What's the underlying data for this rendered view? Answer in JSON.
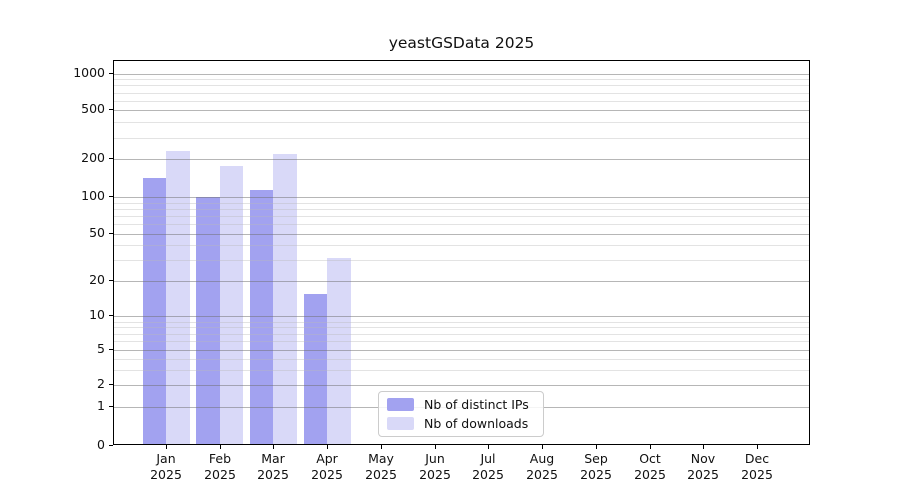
{
  "figure": {
    "title": "yeastGSData 2025"
  },
  "chart_data": {
    "type": "bar",
    "title": "yeastGSData 2025",
    "x_months": [
      "Jan",
      "Feb",
      "Mar",
      "Apr",
      "May",
      "Jun",
      "Jul",
      "Aug",
      "Sep",
      "Oct",
      "Nov",
      "Dec"
    ],
    "x_year": "2025",
    "series": [
      {
        "name": "Nb of distinct IPs",
        "color": "#a2a2f0",
        "values": [
          137,
          97,
          110,
          15,
          0,
          0,
          0,
          0,
          0,
          0,
          0,
          0
        ]
      },
      {
        "name": "Nb of downloads",
        "color": "#d9d9f8",
        "values": [
          225,
          170,
          212,
          30,
          0,
          0,
          0,
          0,
          0,
          0,
          0,
          0
        ]
      }
    ],
    "y_ticks": [
      0,
      1,
      2,
      5,
      10,
      20,
      50,
      100,
      200,
      500,
      1000
    ],
    "y_minor_gridlines": [
      3,
      4,
      6,
      7,
      8,
      9,
      30,
      40,
      60,
      70,
      80,
      90,
      300,
      400,
      600,
      700,
      800,
      900
    ],
    "y_scale": "symlog",
    "ylim": [
      0,
      1250
    ],
    "grid": "both",
    "legend": {
      "position": "lower-center",
      "items": [
        "Nb of distinct IPs",
        "Nb of downloads"
      ]
    }
  }
}
